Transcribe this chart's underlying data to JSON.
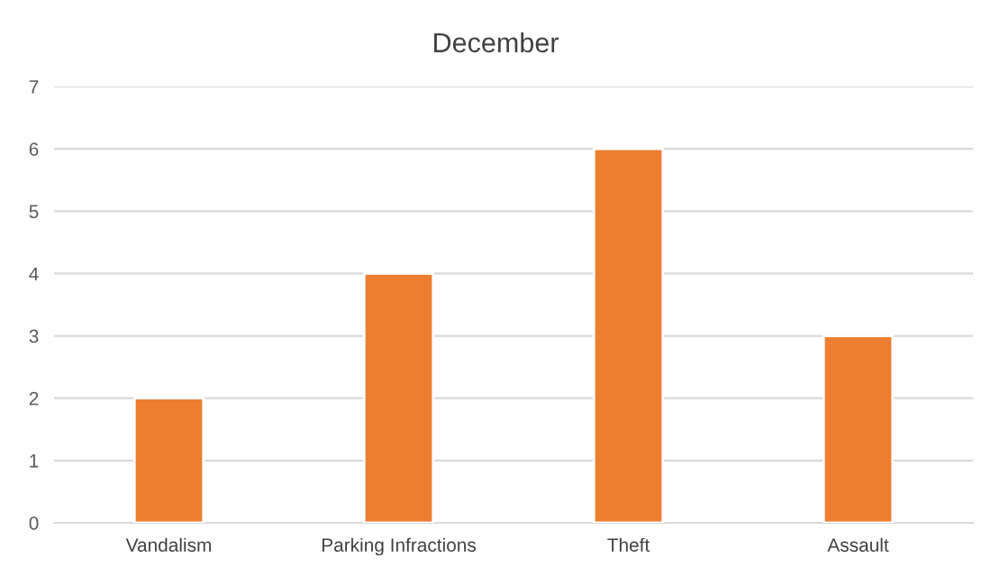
{
  "chart_data": {
    "type": "bar",
    "title": "December",
    "categories": [
      "Vandalism",
      "Parking Infractions",
      "Theft",
      "Assault"
    ],
    "values": [
      2,
      4,
      6,
      3
    ],
    "color": "#ed7d31",
    "ylim": [
      0,
      7
    ],
    "yticks": [
      0,
      1,
      2,
      3,
      4,
      5,
      6,
      7
    ],
    "grid": "y"
  }
}
